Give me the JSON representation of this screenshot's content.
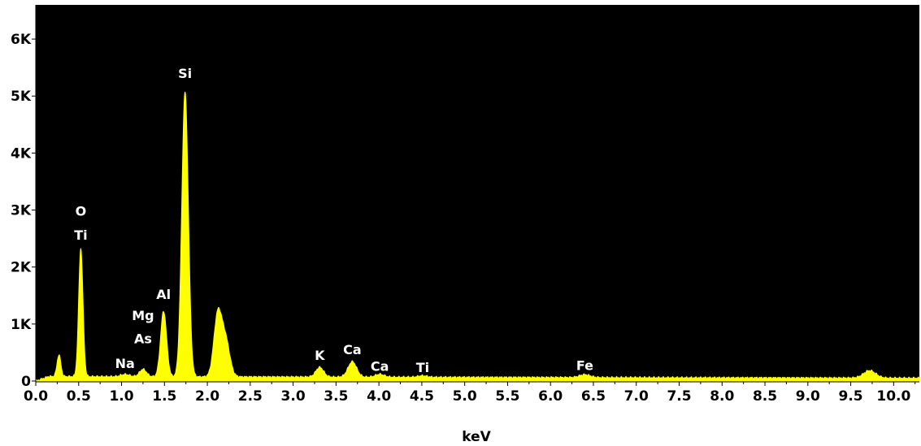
{
  "chart_data": {
    "type": "area",
    "title": "",
    "xlabel": "keV",
    "ylabel": "",
    "xlim": [
      0.0,
      10.3
    ],
    "ylim": [
      0,
      6600
    ],
    "grid": false,
    "background_color": "#000000",
    "series_color": "#ffff00",
    "label_color": "#ffffff",
    "x_ticks": [
      "0.0",
      "0.5",
      "1.0",
      "1.5",
      "2.0",
      "2.5",
      "3.0",
      "3.5",
      "4.0",
      "4.5",
      "5.0",
      "5.5",
      "6.0",
      "6.5",
      "7.0",
      "7.5",
      "8.0",
      "8.5",
      "9.0",
      "9.5",
      "10.0"
    ],
    "y_ticks": [
      {
        "value": 0,
        "label": "0"
      },
      {
        "value": 1000,
        "label": "1K"
      },
      {
        "value": 2000,
        "label": "2K"
      },
      {
        "value": 3000,
        "label": "3K"
      },
      {
        "value": 4000,
        "label": "4K"
      },
      {
        "value": 5000,
        "label": "5K"
      },
      {
        "value": 6000,
        "label": "6K"
      }
    ],
    "baseline": 80,
    "peaks": [
      {
        "center": 0.27,
        "height": 380,
        "width": 0.022
      },
      {
        "center": 0.525,
        "height": 2250,
        "width": 0.025
      },
      {
        "center": 1.04,
        "height": 40,
        "width": 0.05
      },
      {
        "center": 1.25,
        "height": 130,
        "width": 0.04
      },
      {
        "center": 1.49,
        "height": 1150,
        "width": 0.035
      },
      {
        "center": 1.74,
        "height": 5000,
        "width": 0.038
      },
      {
        "center": 2.12,
        "height": 1050,
        "width": 0.045
      },
      {
        "center": 2.21,
        "height": 650,
        "width": 0.05
      },
      {
        "center": 3.31,
        "height": 170,
        "width": 0.045
      },
      {
        "center": 3.69,
        "height": 270,
        "width": 0.05
      },
      {
        "center": 4.01,
        "height": 50,
        "width": 0.05
      },
      {
        "center": 4.51,
        "height": 25,
        "width": 0.05
      },
      {
        "center": 6.4,
        "height": 50,
        "width": 0.06
      },
      {
        "center": 9.72,
        "height": 130,
        "width": 0.07
      }
    ],
    "element_labels": [
      {
        "text": "O",
        "x": 0.525,
        "y": 2900
      },
      {
        "text": "Ti",
        "x": 0.525,
        "y": 2480
      },
      {
        "text": "Na",
        "x": 1.04,
        "y": 230
      },
      {
        "text": "Mg",
        "x": 1.25,
        "y": 1070
      },
      {
        "text": "As",
        "x": 1.25,
        "y": 660
      },
      {
        "text": "Al",
        "x": 1.49,
        "y": 1440
      },
      {
        "text": "Si",
        "x": 1.74,
        "y": 5320
      },
      {
        "text": "K",
        "x": 3.31,
        "y": 370
      },
      {
        "text": "Ca",
        "x": 3.69,
        "y": 470
      },
      {
        "text": "Ca",
        "x": 4.01,
        "y": 180
      },
      {
        "text": "Ti",
        "x": 4.51,
        "y": 160
      },
      {
        "text": "Fe",
        "x": 6.4,
        "y": 190
      }
    ]
  }
}
